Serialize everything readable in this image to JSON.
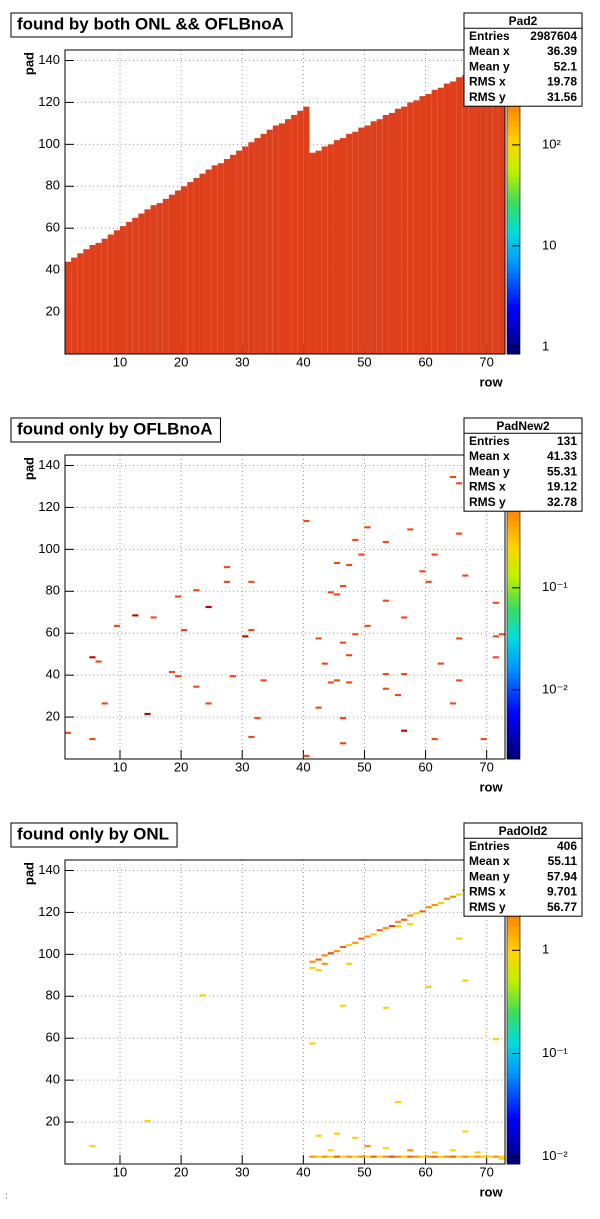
{
  "charts": [
    {
      "type": "region",
      "title": "found by both ONL && OFLBnoA",
      "stats_title": "Pad2",
      "stats": [
        {
          "name": "Entries",
          "value": 2987604
        },
        {
          "name": "Mean x",
          "value": 36.39
        },
        {
          "name": "Mean y",
          "value": 52.1
        },
        {
          "name": "RMS x",
          "value": 19.78
        },
        {
          "name": "RMS y",
          "value": 31.56
        }
      ],
      "x_label": "row",
      "y_label": "pad",
      "xlim": [
        1,
        73
      ],
      "ylim": [
        0,
        145
      ],
      "xticks": [
        10,
        20,
        30,
        40,
        50,
        60,
        70
      ],
      "yticks": [
        20,
        40,
        60,
        80,
        100,
        120,
        140
      ],
      "zlim": [
        0.85,
        870
      ],
      "log_z": true,
      "zticks": [
        1,
        10,
        {
          "value": 100,
          "label": "10²"
        }
      ],
      "grid": true,
      "color": "#de401c",
      "x": [
        1,
        2,
        3,
        4,
        5,
        6,
        7,
        8,
        9,
        10,
        11,
        12,
        13,
        14,
        15,
        16,
        17,
        18,
        19,
        20,
        21,
        22,
        23,
        24,
        25,
        26,
        27,
        28,
        29,
        30,
        31,
        32,
        33,
        34,
        35,
        36,
        37,
        38,
        39,
        40,
        41,
        42,
        43,
        44,
        45,
        46,
        47,
        48,
        49,
        50,
        51,
        52,
        53,
        54,
        55,
        56,
        57,
        58,
        59,
        60,
        61,
        62,
        63,
        64,
        65,
        66,
        67,
        68,
        69,
        70,
        71,
        72
      ],
      "values": [
        44,
        46,
        48,
        50,
        52,
        53,
        55,
        57,
        59,
        61,
        63,
        65,
        67,
        69,
        71,
        72,
        74,
        76,
        78,
        80,
        82,
        84,
        86,
        88,
        90,
        91,
        93,
        95,
        97,
        99,
        101,
        103,
        105,
        107,
        109,
        110,
        112,
        114,
        116,
        118,
        96,
        97,
        99,
        100,
        102,
        103,
        105,
        106,
        108,
        109,
        111,
        112,
        114,
        115,
        117,
        118,
        120,
        121,
        123,
        124,
        126,
        127,
        129,
        130,
        132,
        133,
        135,
        136,
        138,
        139,
        141,
        142
      ]
    },
    {
      "type": "cells",
      "title": "found only by OFLBnoA",
      "stats_title": "PadNew2",
      "stats": [
        {
          "name": "Entries",
          "value": 131
        },
        {
          "name": "Mean x",
          "value": 41.33
        },
        {
          "name": "Mean y",
          "value": 55.31
        },
        {
          "name": "RMS x",
          "value": 19.12
        },
        {
          "name": "RMS y",
          "value": 32.78
        }
      ],
      "x_label": "row",
      "y_label": "pad",
      "xlim": [
        1,
        73
      ],
      "ylim": [
        0,
        145
      ],
      "xticks": [
        10,
        20,
        30,
        40,
        50,
        60,
        70
      ],
      "yticks": [
        20,
        40,
        60,
        80,
        100,
        120,
        140
      ],
      "zlim": [
        0.0021,
        2
      ],
      "log_z": true,
      "zticks": [
        {
          "value": 0.1,
          "label": "10⁻¹"
        },
        {
          "value": 0.01,
          "label": "10⁻²"
        }
      ],
      "grid": true,
      "x": [
        40,
        50,
        57,
        65,
        61,
        48,
        49,
        53,
        45,
        47,
        59,
        66,
        27,
        27,
        31,
        22,
        19,
        44,
        45,
        46,
        53,
        60,
        71,
        12,
        15,
        24,
        9,
        20,
        31,
        50,
        56,
        30,
        42,
        48,
        46,
        65,
        71,
        5,
        6,
        18,
        19,
        28,
        33,
        44,
        45,
        47,
        43,
        47,
        53,
        56,
        62,
        65,
        53,
        55,
        7,
        22,
        24,
        14,
        32,
        42,
        46,
        56,
        64,
        1,
        5,
        31,
        40,
        46,
        61,
        69,
        64,
        65,
        72,
        71
      ],
      "y": [
        113,
        110,
        109,
        107,
        97,
        104,
        97,
        103,
        93,
        92,
        89,
        87,
        91,
        84,
        84,
        80,
        77,
        79,
        78,
        82,
        75,
        84,
        74,
        68,
        67,
        72,
        63,
        61,
        61,
        63,
        67,
        58,
        57,
        59,
        55,
        57,
        58,
        48,
        46,
        41,
        39,
        39,
        37,
        36,
        37,
        36,
        45,
        49,
        40,
        40,
        45,
        37,
        33,
        30,
        26,
        34,
        26,
        21,
        19,
        24,
        19,
        13,
        26,
        12,
        9,
        10,
        1,
        7,
        9,
        9,
        134,
        131,
        59,
        48
      ],
      "values": [
        1,
        1,
        1,
        1,
        1,
        1,
        1,
        1,
        1,
        1,
        1,
        1,
        1,
        1,
        1,
        1,
        1,
        1,
        1,
        1,
        1,
        1,
        1,
        2,
        1,
        2,
        1,
        1,
        1,
        1,
        1,
        2,
        1,
        1,
        1,
        1,
        1,
        2,
        1,
        1,
        1,
        1,
        1,
        1,
        1,
        1,
        1,
        1,
        1,
        1,
        1,
        1,
        1,
        1,
        1,
        1,
        1,
        2,
        1,
        1,
        1,
        2,
        1,
        1,
        1,
        1,
        1,
        1,
        1,
        1,
        1,
        1,
        1,
        1
      ]
    },
    {
      "type": "cells",
      "title": "found only by ONL",
      "stats_title": "PadOld2",
      "stats": [
        {
          "name": "Entries",
          "value": 406
        },
        {
          "name": "Mean x",
          "value": 55.11
        },
        {
          "name": "Mean y",
          "value": 57.94
        },
        {
          "name": "RMS x",
          "value": 9.701
        },
        {
          "name": "RMS y",
          "value": 56.77
        }
      ],
      "x_label": "row",
      "y_label": "pad",
      "xlim": [
        1,
        73
      ],
      "ylim": [
        0,
        145
      ],
      "xticks": [
        10,
        20,
        30,
        40,
        50,
        60,
        70
      ],
      "yticks": [
        20,
        40,
        60,
        80,
        100,
        120,
        140
      ],
      "zlim": [
        0.0085,
        7.5
      ],
      "log_z": true,
      "zticks": [
        1,
        {
          "value": 0.1,
          "label": "10⁻¹"
        },
        {
          "value": 0.01,
          "label": "10⁻²"
        }
      ],
      "grid": true,
      "x": [
        41,
        42,
        43,
        44,
        45,
        46,
        47,
        48,
        49,
        50,
        51,
        52,
        53,
        54,
        55,
        56,
        57,
        58,
        59,
        60,
        61,
        62,
        63,
        64,
        65,
        66,
        67,
        68,
        69,
        70,
        71,
        72,
        41,
        42,
        43,
        57,
        55,
        23,
        46,
        47,
        53,
        65,
        66,
        60,
        41,
        71,
        55,
        14,
        5,
        42,
        66,
        45,
        48,
        41,
        42,
        43,
        44,
        45,
        46,
        47,
        48,
        49,
        50,
        51,
        52,
        53,
        54,
        55,
        56,
        57,
        58,
        59,
        60,
        61,
        62,
        63,
        64,
        65,
        66,
        67,
        68,
        69,
        70,
        71,
        72,
        44,
        50,
        53,
        57,
        61,
        64,
        68,
        72
      ],
      "y": [
        96,
        97,
        99,
        100,
        101,
        103,
        104,
        105,
        107,
        108,
        109,
        111,
        112,
        113,
        115,
        116,
        118,
        119,
        120,
        122,
        123,
        124,
        126,
        127,
        128,
        130,
        131,
        132,
        134,
        135,
        136,
        138,
        93,
        92,
        95,
        114,
        113,
        80,
        75,
        95,
        74,
        107,
        87,
        84,
        57,
        59,
        29,
        20,
        8,
        13,
        15,
        14,
        12,
        3,
        3,
        3,
        3,
        3,
        3,
        3,
        3,
        3,
        3,
        3,
        3,
        3,
        3,
        3,
        3,
        3,
        3,
        3,
        3,
        3,
        3,
        3,
        3,
        3,
        3,
        3,
        3,
        3,
        3,
        3,
        3,
        6,
        8,
        7,
        6,
        5,
        6,
        5,
        2
      ],
      "values": [
        2,
        3,
        2,
        4,
        2,
        3,
        1,
        2,
        3,
        2,
        1,
        3,
        2,
        4,
        2,
        3,
        2,
        1,
        3,
        2,
        2,
        1,
        2,
        2,
        1,
        2,
        2,
        1,
        1,
        2,
        1,
        2,
        1,
        1,
        2,
        1,
        1,
        1,
        1,
        1,
        1,
        1,
        1,
        1,
        1,
        1,
        1,
        1,
        1,
        1,
        1,
        1,
        1,
        2,
        1,
        2,
        1,
        3,
        1,
        2,
        1,
        2,
        1,
        3,
        1,
        2,
        4,
        2,
        1,
        3,
        2,
        1,
        2,
        3,
        1,
        2,
        3,
        1,
        2,
        1,
        2,
        1,
        1,
        2,
        1,
        1,
        2,
        1,
        2,
        1,
        1,
        1,
        1
      ]
    }
  ],
  "footer": ":"
}
